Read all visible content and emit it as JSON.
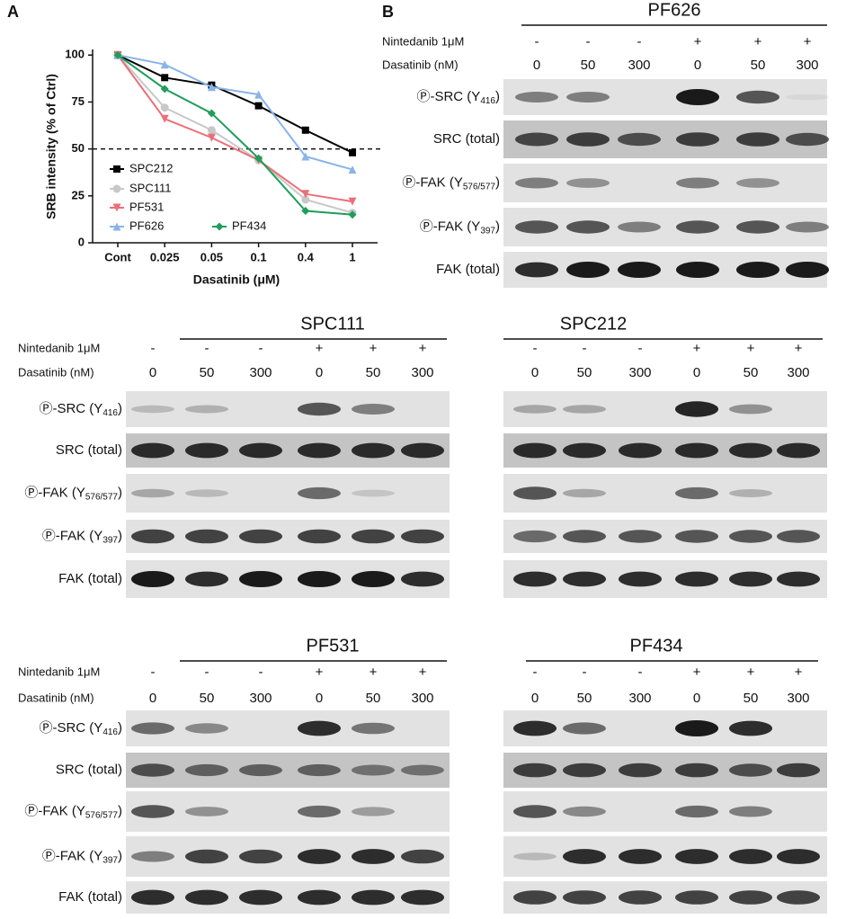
{
  "chart_data": {
    "type": "line",
    "panel_label": "A",
    "ylabel": "SRB intensity (% of Ctrl)",
    "xlabel": "Dasatinib (μM)",
    "categories": [
      "Cont",
      "0.025",
      "0.05",
      "0.1",
      "0.4",
      "1"
    ],
    "ylim": [
      0,
      103
    ],
    "yticks": [
      0,
      25,
      50,
      75,
      100
    ],
    "reference_line": 50,
    "series": [
      {
        "name": "SPC212",
        "color": "#000000",
        "marker": "square",
        "values": [
          100,
          88,
          84,
          73,
          60,
          48
        ]
      },
      {
        "name": "SPC111",
        "color": "#c8c8c8",
        "marker": "circle",
        "values": [
          100,
          72,
          60,
          44,
          23,
          16
        ]
      },
      {
        "name": "PF531",
        "color": "#ec6f78",
        "marker": "triangle-down",
        "values": [
          100,
          66,
          56,
          44,
          26,
          22
        ]
      },
      {
        "name": "PF626",
        "color": "#8ab4e8",
        "marker": "triangle-up",
        "values": [
          100,
          95,
          83,
          79,
          46,
          39
        ]
      },
      {
        "name": "PF434",
        "color": "#1e9e5a",
        "marker": "diamond",
        "values": [
          100,
          82,
          69,
          45,
          17,
          15
        ]
      }
    ]
  },
  "panel_b": {
    "panel_label": "B",
    "blots": [
      {
        "title": "PF626",
        "nintedanib_label": "Nintedanib 1μM",
        "nintedanib": [
          "-",
          "-",
          "-",
          "+",
          "+",
          "+"
        ],
        "dasatinib_label": "Dasatinib (nM)",
        "dasatinib": [
          "0",
          "50",
          "300",
          "0",
          "50",
          "300"
        ],
        "rows": [
          {
            "text": "Ⓟ-SRC (Y",
            "sub": "416",
            "tail": ")"
          },
          {
            "text": "SRC (total)"
          },
          {
            "text": "Ⓟ-FAK (Y",
            "sub": "576/577",
            "tail": ")"
          },
          {
            "text": "Ⓟ-FAK (Y",
            "sub": "397",
            "tail": ")"
          },
          {
            "text": "FAK (total)"
          }
        ]
      },
      {
        "title": "SPC111",
        "nintedanib_label": "Nintedanib 1μM",
        "nintedanib": [
          "-",
          "-",
          "-",
          "+",
          "+",
          "+"
        ],
        "dasatinib_label": "Dasatinib (nM)",
        "dasatinib": [
          "0",
          "50",
          "300",
          "0",
          "50",
          "300"
        ],
        "rows": [
          {
            "text": "Ⓟ-SRC (Y",
            "sub": "416",
            "tail": ")"
          },
          {
            "text": "SRC (total)"
          },
          {
            "text": "Ⓟ-FAK (Y",
            "sub": "576/577",
            "tail": ")"
          },
          {
            "text": "Ⓟ-FAK (Y",
            "sub": "397",
            "tail": ")"
          },
          {
            "text": "FAK (total)"
          }
        ]
      },
      {
        "title": "SPC212",
        "nintedanib": [
          "-",
          "-",
          "-",
          "+",
          "+",
          "+"
        ],
        "dasatinib": [
          "0",
          "50",
          "300",
          "0",
          "50",
          "300"
        ]
      },
      {
        "title": "PF531",
        "nintedanib_label": "Nintedanib 1μM",
        "nintedanib": [
          "-",
          "-",
          "-",
          "+",
          "+",
          "+"
        ],
        "dasatinib_label": "Dasatinib (nM)",
        "dasatinib": [
          "0",
          "50",
          "300",
          "0",
          "50",
          "300"
        ],
        "rows": [
          {
            "text": "Ⓟ-SRC (Y",
            "sub": "416",
            "tail": ")"
          },
          {
            "text": "SRC (total)"
          },
          {
            "text": "Ⓟ-FAK (Y",
            "sub": "576/577",
            "tail": ")"
          },
          {
            "text": "Ⓟ-FAK (Y",
            "sub": "397",
            "tail": ")"
          },
          {
            "text": "FAK (total)"
          }
        ]
      },
      {
        "title": "PF434",
        "nintedanib": [
          "-",
          "-",
          "-",
          "+",
          "+",
          "+"
        ],
        "dasatinib": [
          "0",
          "50",
          "300",
          "0",
          "50",
          "300"
        ]
      }
    ]
  }
}
